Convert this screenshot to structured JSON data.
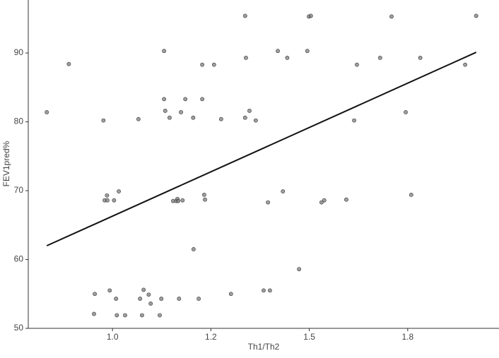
{
  "chart_data": {
    "type": "scatter",
    "xlabel": "Th1/Th2",
    "ylabel": "FEV1pred%",
    "x": [
      0.833,
      0.889,
      0.977,
      0.98,
      0.987,
      0.986,
      1.004,
      1.016,
      0.953,
      0.955,
      0.993,
      1.009,
      1.011,
      1.032,
      1.066,
      1.07,
      1.079,
      1.075,
      1.092,
      1.097,
      1.12,
      1.124,
      1.131,
      1.131,
      1.134,
      1.145,
      1.154,
      1.162,
      1.165,
      1.167,
      1.178,
      1.174,
      1.185,
      1.169,
      1.205,
      1.206,
      1.219,
      1.228,
      1.228,
      1.233,
      1.235,
      1.258,
      1.276,
      1.301,
      1.337,
      1.339,
      1.337,
      1.348,
      1.364,
      1.384,
      1.395,
      1.4,
      1.42,
      1.433,
      1.444,
      1.474,
      1.495,
      1.499,
      1.504,
      1.531,
      1.538,
      1.594,
      1.614,
      1.621,
      1.68,
      1.709,
      1.745,
      1.759,
      1.782,
      1.896,
      1.924
    ],
    "values": [
      81.4,
      88.4,
      80.2,
      68.6,
      68.6,
      69.3,
      68.6,
      69.9,
      52.1,
      55.0,
      55.5,
      54.3,
      51.9,
      51.9,
      80.4,
      54.3,
      55.6,
      51.9,
      54.9,
      53.6,
      51.9,
      54.3,
      90.3,
      83.3,
      81.6,
      80.6,
      68.5,
      68.5,
      68.8,
      68.5,
      68.6,
      81.4,
      83.3,
      54.3,
      80.6,
      61.5,
      54.3,
      88.3,
      83.3,
      69.4,
      68.7,
      88.3,
      80.4,
      55.0,
      95.4,
      89.3,
      80.6,
      81.6,
      80.2,
      55.5,
      68.3,
      55.5,
      90.3,
      69.9,
      89.3,
      58.6,
      90.3,
      95.3,
      95.4,
      68.3,
      68.6,
      68.7,
      80.2,
      88.3,
      89.3,
      95.3,
      81.4,
      69.4,
      89.3,
      88.3,
      95.4
    ],
    "color": "#7f7f7f",
    "trend": {
      "x": [
        0.833,
        1.924
      ],
      "values": [
        62.0,
        90.1
      ],
      "color": "#111111"
    },
    "xlim": [
      0.786,
      1.982
    ],
    "ylim": [
      50,
      97.7
    ],
    "xticks": [
      {
        "value": 1.0,
        "label": "1.0"
      },
      {
        "value": 1.25,
        "label": "1.2"
      },
      {
        "value": 1.5,
        "label": "1.5"
      },
      {
        "value": 1.75,
        "label": "1.8"
      }
    ],
    "yticks": [
      50,
      60,
      70,
      80,
      90
    ]
  }
}
